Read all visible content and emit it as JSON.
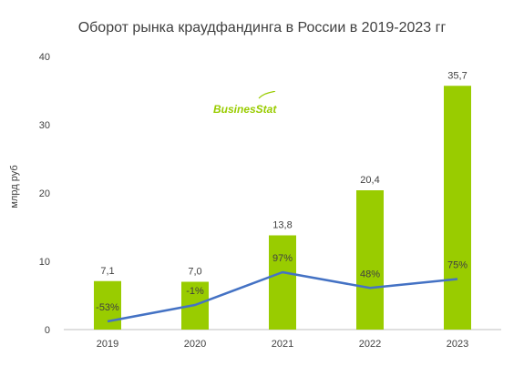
{
  "chart_data": {
    "type": "bar",
    "title": "Оборот рынка краудфандинга в России в 2019-2023 гг",
    "ylabel": "млрд руб",
    "xlabel": "",
    "ylim": [
      0,
      40
    ],
    "yticks": [
      "0",
      "10",
      "20",
      "30",
      "40"
    ],
    "categories": [
      "2019",
      "2020",
      "2021",
      "2022",
      "2023"
    ],
    "series": [
      {
        "values": [
          7.1,
          7.0,
          13.8,
          20.4,
          35.7
        ],
        "labels": [
          "7,1",
          "7,0",
          "13,8",
          "20,4",
          "35,7"
        ]
      }
    ],
    "growth_line": {
      "values": [
        -53,
        -1,
        97,
        48,
        75
      ],
      "labels": [
        "-53%",
        "-1%",
        "97%",
        "48%",
        "75%"
      ],
      "display_levels": [
        1.2,
        3.6,
        8.4,
        6.1,
        7.4
      ]
    },
    "colors": {
      "bar": "#99CC00",
      "line": "#4472C4",
      "text": "#404040",
      "axis": "#bfbfbf"
    },
    "grid": false,
    "logo_text": "BusinesStat"
  }
}
